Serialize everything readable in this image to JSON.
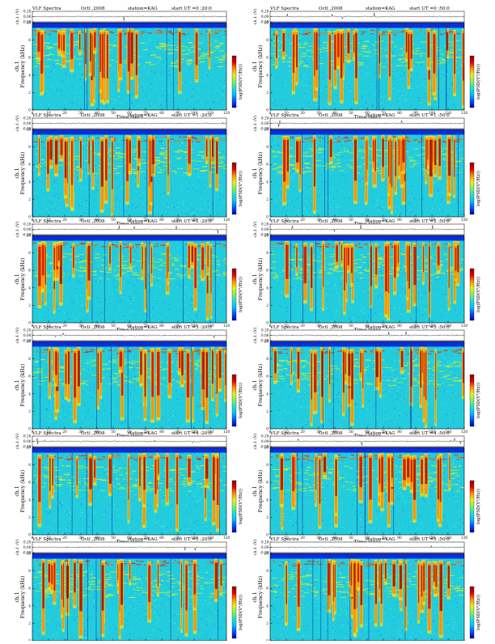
{
  "layout": {
    "columns": [
      0,
      1
    ],
    "rows": [
      0,
      1,
      2,
      3,
      4,
      5
    ]
  },
  "header": {
    "title": "VLF Spectra",
    "date": "Octl ,2008",
    "station": "station=KAG",
    "start_prefix": "start UT"
  },
  "labels": {
    "amplitude_axis": "ch.1 (V)",
    "spec_axis_line1": "ch.1",
    "spec_axis_line2": "Frequency (kHz)",
    "time_axis": "Time (sec)",
    "colorbar_label": "log(PSD(V²/Hz))",
    "colorbar_ticks": [
      "-",
      "-"
    ]
  },
  "colors": {
    "spec_background": "#22ccdd",
    "scale": [
      "#0000a0",
      "#0050ff",
      "#00c0ff",
      "#20e0d0",
      "#80f060",
      "#e8f020",
      "#ff9000",
      "#e00000",
      "#900000"
    ]
  },
  "chart_data": [
    {
      "type": "heatmap",
      "title": "VLF Spectra",
      "start_ut": "=0 :20:0",
      "amp_ticks": [
        "0.20",
        "0.00",
        "-0.20"
      ],
      "x_ticks": [
        0,
        10,
        20,
        30,
        40,
        50,
        60,
        70,
        80,
        90,
        100,
        110,
        120
      ],
      "y_ticks": [
        0,
        2,
        4,
        6,
        8,
        10
      ],
      "xlim": [
        0,
        120
      ],
      "ylim": [
        0,
        10
      ],
      "amp_ylim": [
        -0.2,
        0.2
      ],
      "xlabel": "Time (sec)",
      "ylabel": "Frequency (kHz)"
    },
    {
      "type": "heatmap",
      "title": "VLF Spectra",
      "start_ut": "=0 :50:0",
      "amp_ticks": [
        "0.20",
        "0.00",
        "-0.20"
      ],
      "x_ticks": [
        0,
        10,
        20,
        30,
        40,
        50,
        60,
        70,
        80,
        90,
        100,
        110,
        120
      ],
      "y_ticks": [
        0,
        2,
        4,
        6,
        8,
        10
      ],
      "xlim": [
        0,
        120
      ],
      "ylim": [
        0,
        10
      ],
      "amp_ylim": [
        -0.2,
        0.2
      ],
      "xlabel": "Time (sec)",
      "ylabel": "Frequency (kHz)"
    },
    {
      "type": "heatmap",
      "title": "VLF Spectra",
      "start_ut": "=1 :20:0",
      "amp_ticks": [
        "0.20",
        "0.00",
        "-0.20"
      ],
      "x_ticks": [
        0,
        10,
        20,
        30,
        40,
        50,
        60,
        70,
        80,
        90,
        100,
        110,
        120
      ],
      "y_ticks": [
        0,
        2,
        4,
        6,
        8,
        10
      ],
      "xlim": [
        0,
        120
      ],
      "ylim": [
        0,
        10
      ],
      "amp_ylim": [
        -0.2,
        0.2
      ],
      "xlabel": "Time (sec)",
      "ylabel": "Frequency (kHz)"
    },
    {
      "type": "heatmap",
      "title": "VLF Spectra",
      "start_ut": "=1 :50:0",
      "amp_ticks": [
        "0.20",
        "0.00",
        "-0.20"
      ],
      "x_ticks": [
        0,
        10,
        20,
        30,
        40,
        50,
        60,
        70,
        80,
        90,
        100,
        110,
        120
      ],
      "y_ticks": [
        0,
        2,
        4,
        6,
        8,
        10
      ],
      "xlim": [
        0,
        120
      ],
      "ylim": [
        0,
        10
      ],
      "amp_ylim": [
        -0.2,
        0.2
      ],
      "xlabel": "Time (sec)",
      "ylabel": "Frequency (kHz)"
    },
    {
      "type": "heatmap",
      "title": "VLF Spectra",
      "start_ut": "=2 :20:0",
      "amp_ticks": [
        "0.20",
        "0.00",
        "-0.20"
      ],
      "x_ticks": [
        0,
        10,
        20,
        30,
        40,
        50,
        60,
        70,
        80,
        90,
        100,
        110,
        120
      ],
      "y_ticks": [
        0,
        2,
        4,
        6,
        8,
        10
      ],
      "xlim": [
        0,
        120
      ],
      "ylim": [
        0,
        10
      ],
      "amp_ylim": [
        -0.2,
        0.2
      ],
      "xlabel": "Time (sec)",
      "ylabel": "Frequency (kHz)"
    },
    {
      "type": "heatmap",
      "title": "VLF Spectra",
      "start_ut": "=2 :50:0",
      "amp_ticks": [
        "0.20",
        "0.00",
        "-0.20"
      ],
      "x_ticks": [
        0,
        10,
        20,
        30,
        40,
        50,
        60,
        70,
        80,
        90,
        100,
        110,
        120
      ],
      "y_ticks": [
        0,
        2,
        4,
        6,
        8,
        10
      ],
      "xlim": [
        0,
        120
      ],
      "ylim": [
        0,
        10
      ],
      "amp_ylim": [
        -0.2,
        0.2
      ],
      "xlabel": "Time (sec)",
      "ylabel": "Frequency (kHz)"
    },
    {
      "type": "heatmap",
      "title": "VLF Spectra",
      "start_ut": "=3 :20:0",
      "amp_ticks": [
        "0.20",
        "0.00",
        "-0.20"
      ],
      "x_ticks": [
        0,
        10,
        20,
        30,
        40,
        50,
        60,
        70,
        80,
        90,
        100,
        110,
        120
      ],
      "y_ticks": [
        0,
        2,
        4,
        6,
        8,
        10
      ],
      "xlim": [
        0,
        120
      ],
      "ylim": [
        0,
        10
      ],
      "amp_ylim": [
        -0.2,
        0.2
      ],
      "xlabel": "Time (sec)",
      "ylabel": "Frequency (kHz)"
    },
    {
      "type": "heatmap",
      "title": "VLF Spectra",
      "start_ut": "=3 :50:0",
      "amp_ticks": [
        "0.20",
        "0.00",
        "-0.20"
      ],
      "x_ticks": [
        0,
        10,
        20,
        30,
        40,
        50,
        60,
        70,
        80,
        90,
        100,
        110,
        120
      ],
      "y_ticks": [
        0,
        2,
        4,
        6,
        8,
        10
      ],
      "xlim": [
        0,
        120
      ],
      "ylim": [
        0,
        10
      ],
      "amp_ylim": [
        -0.2,
        0.2
      ],
      "xlabel": "Time (sec)",
      "ylabel": "Frequency (kHz)"
    },
    {
      "type": "heatmap",
      "title": "VLF Spectra",
      "start_ut": "=4 :20:0",
      "amp_ticks": [
        "0.20",
        "0.00",
        "-0.20"
      ],
      "x_ticks": [
        0,
        10,
        20,
        30,
        40,
        50,
        60,
        70,
        80,
        90,
        100,
        110,
        120
      ],
      "y_ticks": [
        0,
        2,
        4,
        6,
        8,
        10
      ],
      "xlim": [
        0,
        120
      ],
      "ylim": [
        0,
        10
      ],
      "amp_ylim": [
        -0.2,
        0.2
      ],
      "xlabel": "Time (sec)",
      "ylabel": "Frequency (kHz)"
    },
    {
      "type": "heatmap",
      "title": "VLF Spectra",
      "start_ut": "=4 :50:0",
      "amp_ticks": [
        "0.20",
        "0.00",
        "-0.20"
      ],
      "x_ticks": [
        0,
        10,
        20,
        30,
        40,
        50,
        60,
        70,
        80,
        90,
        100,
        110,
        120
      ],
      "y_ticks": [
        0,
        2,
        4,
        6,
        8,
        10
      ],
      "xlim": [
        0,
        120
      ],
      "ylim": [
        0,
        10
      ],
      "amp_ylim": [
        -0.2,
        0.2
      ],
      "xlabel": "Time (sec)",
      "ylabel": "Frequency (kHz)"
    },
    {
      "type": "heatmap",
      "title": "VLF Spectra",
      "start_ut": "=5 :20:0",
      "amp_ticks": [
        "0.20",
        "0.00",
        "-0.20"
      ],
      "x_ticks": [
        0,
        10,
        20,
        30,
        40,
        50,
        60,
        70,
        80,
        90,
        100,
        110,
        120
      ],
      "y_ticks": [
        0,
        2,
        4,
        6,
        8,
        10
      ],
      "xlim": [
        0,
        120
      ],
      "ylim": [
        0,
        10
      ],
      "amp_ylim": [
        -0.2,
        0.2
      ],
      "xlabel": "Time (sec)",
      "ylabel": "Frequency (kHz)"
    },
    {
      "type": "heatmap",
      "title": "VLF Spectra",
      "start_ut": "=5 :50:0",
      "amp_ticks": [
        "0.20",
        "0.00",
        "-0.20"
      ],
      "x_ticks": [
        0,
        10,
        20,
        30,
        40,
        50,
        60,
        70,
        80,
        90,
        100,
        110,
        120
      ],
      "y_ticks": [
        0,
        2,
        4,
        6,
        8,
        10
      ],
      "xlim": [
        0,
        120
      ],
      "ylim": [
        0,
        10
      ],
      "amp_ylim": [
        -0.2,
        0.2
      ],
      "xlabel": "Time (sec)",
      "ylabel": "Frequency (kHz)"
    }
  ]
}
